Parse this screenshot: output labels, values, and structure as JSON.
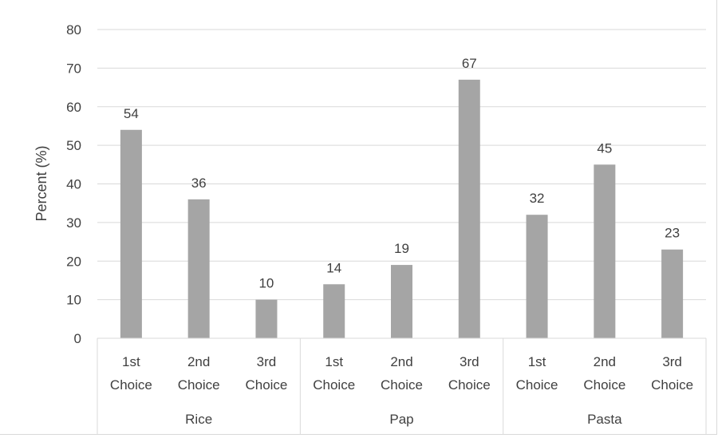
{
  "chart_data": {
    "type": "bar",
    "groups": [
      "Rice",
      "Pap",
      "Pasta"
    ],
    "categories": [
      {
        "group": "Rice",
        "line1": "1st",
        "line2": "Choice"
      },
      {
        "group": "Rice",
        "line1": "2nd",
        "line2": "Choice"
      },
      {
        "group": "Rice",
        "line1": "3rd",
        "line2": "Choice"
      },
      {
        "group": "Pap",
        "line1": "1st",
        "line2": "Choice"
      },
      {
        "group": "Pap",
        "line1": "2nd",
        "line2": "Choice"
      },
      {
        "group": "Pap",
        "line1": "3rd",
        "line2": "Choice"
      },
      {
        "group": "Pasta",
        "line1": "1st",
        "line2": "Choice"
      },
      {
        "group": "Pasta",
        "line1": "2nd",
        "line2": "Choice"
      },
      {
        "group": "Pasta",
        "line1": "3rd",
        "line2": "Choice"
      }
    ],
    "values": [
      54,
      36,
      10,
      14,
      19,
      67,
      32,
      45,
      23
    ],
    "ylabel": "Percent (%)",
    "ylim": [
      0,
      80
    ],
    "yticks": [
      0,
      10,
      20,
      30,
      40,
      50,
      60,
      70,
      80
    ],
    "grid": true,
    "bar_color": "#a5a5a5",
    "grid_color": "#d9d9d9",
    "text_color": "#404040"
  }
}
